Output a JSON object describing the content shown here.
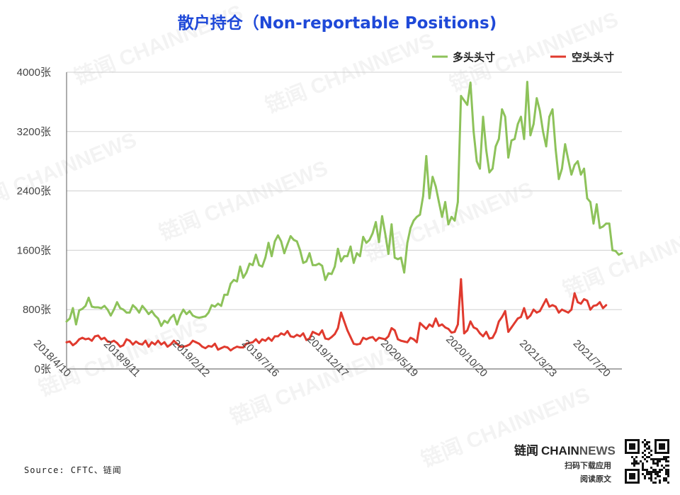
{
  "chart_data": {
    "type": "line",
    "title": "散户持仓（Non-reportable Positions)",
    "y_tick_labels": [
      "0张",
      "800张",
      "1600张",
      "2400张",
      "3200张",
      "4000张"
    ],
    "y_ticks": [
      0,
      800,
      1600,
      2400,
      3200,
      4000
    ],
    "ylim": [
      0,
      4000
    ],
    "x_tick_labels": [
      "2018/4/10",
      "2018/9/11",
      "2019/2/12",
      "2019/7/16",
      "2019/12/17",
      "2020/5/19",
      "2020/10/20",
      "2021/3/23",
      "2021/7/20"
    ],
    "x_tick_index": [
      0,
      22,
      44,
      66,
      88,
      110,
      132,
      154,
      171
    ],
    "grid": "horizontal",
    "legend_position": "top-right",
    "series": [
      {
        "name": "多头头寸",
        "color": "#8dc25a",
        "values": [
          640,
          680,
          820,
          600,
          790,
          810,
          850,
          960,
          840,
          830,
          830,
          820,
          850,
          800,
          720,
          800,
          900,
          820,
          800,
          760,
          760,
          860,
          820,
          760,
          850,
          800,
          740,
          780,
          720,
          680,
          580,
          650,
          620,
          690,
          730,
          600,
          720,
          800,
          740,
          780,
          720,
          700,
          690,
          700,
          710,
          760,
          860,
          840,
          880,
          850,
          1000,
          1000,
          1150,
          1200,
          1180,
          1380,
          1230,
          1300,
          1420,
          1400,
          1540,
          1400,
          1380,
          1500,
          1700,
          1520,
          1720,
          1800,
          1720,
          1560,
          1680,
          1790,
          1740,
          1720,
          1600,
          1430,
          1450,
          1560,
          1400,
          1400,
          1420,
          1390,
          1200,
          1290,
          1280,
          1380,
          1620,
          1450,
          1520,
          1520,
          1650,
          1430,
          1560,
          1520,
          1780,
          1700,
          1740,
          1830,
          1980,
          1710,
          2060,
          1820,
          1550,
          1950,
          1500,
          1480,
          1500,
          1300,
          1700,
          1900,
          2000,
          2050,
          2080,
          2330,
          2870,
          2300,
          2590,
          2460,
          2250,
          2050,
          2250,
          1950,
          2050,
          2000,
          2250,
          3680,
          3620,
          3560,
          3860,
          3200,
          2800,
          2700,
          3400,
          2950,
          2650,
          2700,
          3000,
          3100,
          3500,
          3400,
          2850,
          3080,
          3100,
          3300,
          3400,
          3100,
          3870,
          3150,
          3300,
          3650,
          3480,
          3200,
          3000,
          3400,
          3500,
          2960,
          2560,
          2700,
          3030,
          2820,
          2620,
          2750,
          2800,
          2620,
          2700,
          2300,
          2250,
          1960,
          2220,
          1900,
          1920,
          1960,
          1960,
          1600,
          1590,
          1540,
          1560
        ]
      },
      {
        "name": "空头头寸",
        "color": "#e03a2e",
        "values": [
          360,
          370,
          320,
          350,
          400,
          420,
          400,
          410,
          380,
          440,
          450,
          400,
          420,
          370,
          360,
          380,
          350,
          300,
          320,
          400,
          380,
          330,
          370,
          340,
          330,
          380,
          300,
          360,
          330,
          380,
          330,
          360,
          300,
          330,
          380,
          340,
          300,
          300,
          310,
          330,
          380,
          360,
          340,
          300,
          280,
          310,
          300,
          340,
          260,
          280,
          300,
          290,
          250,
          280,
          300,
          290,
          290,
          340,
          350,
          360,
          400,
          350,
          400,
          380,
          420,
          380,
          440,
          440,
          480,
          460,
          510,
          440,
          430,
          460,
          440,
          480,
          390,
          410,
          500,
          480,
          460,
          520,
          410,
          400,
          430,
          470,
          550,
          760,
          640,
          520,
          430,
          340,
          330,
          340,
          420,
          400,
          420,
          430,
          380,
          420,
          410,
          400,
          440,
          550,
          520,
          400,
          380,
          370,
          360,
          420,
          400,
          360,
          620,
          580,
          540,
          600,
          570,
          680,
          580,
          600,
          560,
          540,
          490,
          500,
          600,
          1210,
          480,
          520,
          640,
          560,
          540,
          480,
          440,
          500,
          410,
          420,
          500,
          640,
          700,
          780,
          500,
          560,
          620,
          680,
          700,
          820,
          680,
          720,
          800,
          760,
          780,
          860,
          940,
          840,
          860,
          840,
          760,
          800,
          780,
          760,
          800,
          1020,
          900,
          880,
          940,
          920,
          800,
          850,
          860,
          900,
          820,
          860
        ]
      }
    ]
  },
  "source_text": "Source: CFTC、链闻",
  "brand": {
    "name_cn": "链闻",
    "name_chain": "CHAIN",
    "name_news": "NEWS",
    "line1": "扫码下载应用",
    "line2": "阅读原文"
  },
  "watermark_text": "链闻 CHAINNEWS"
}
